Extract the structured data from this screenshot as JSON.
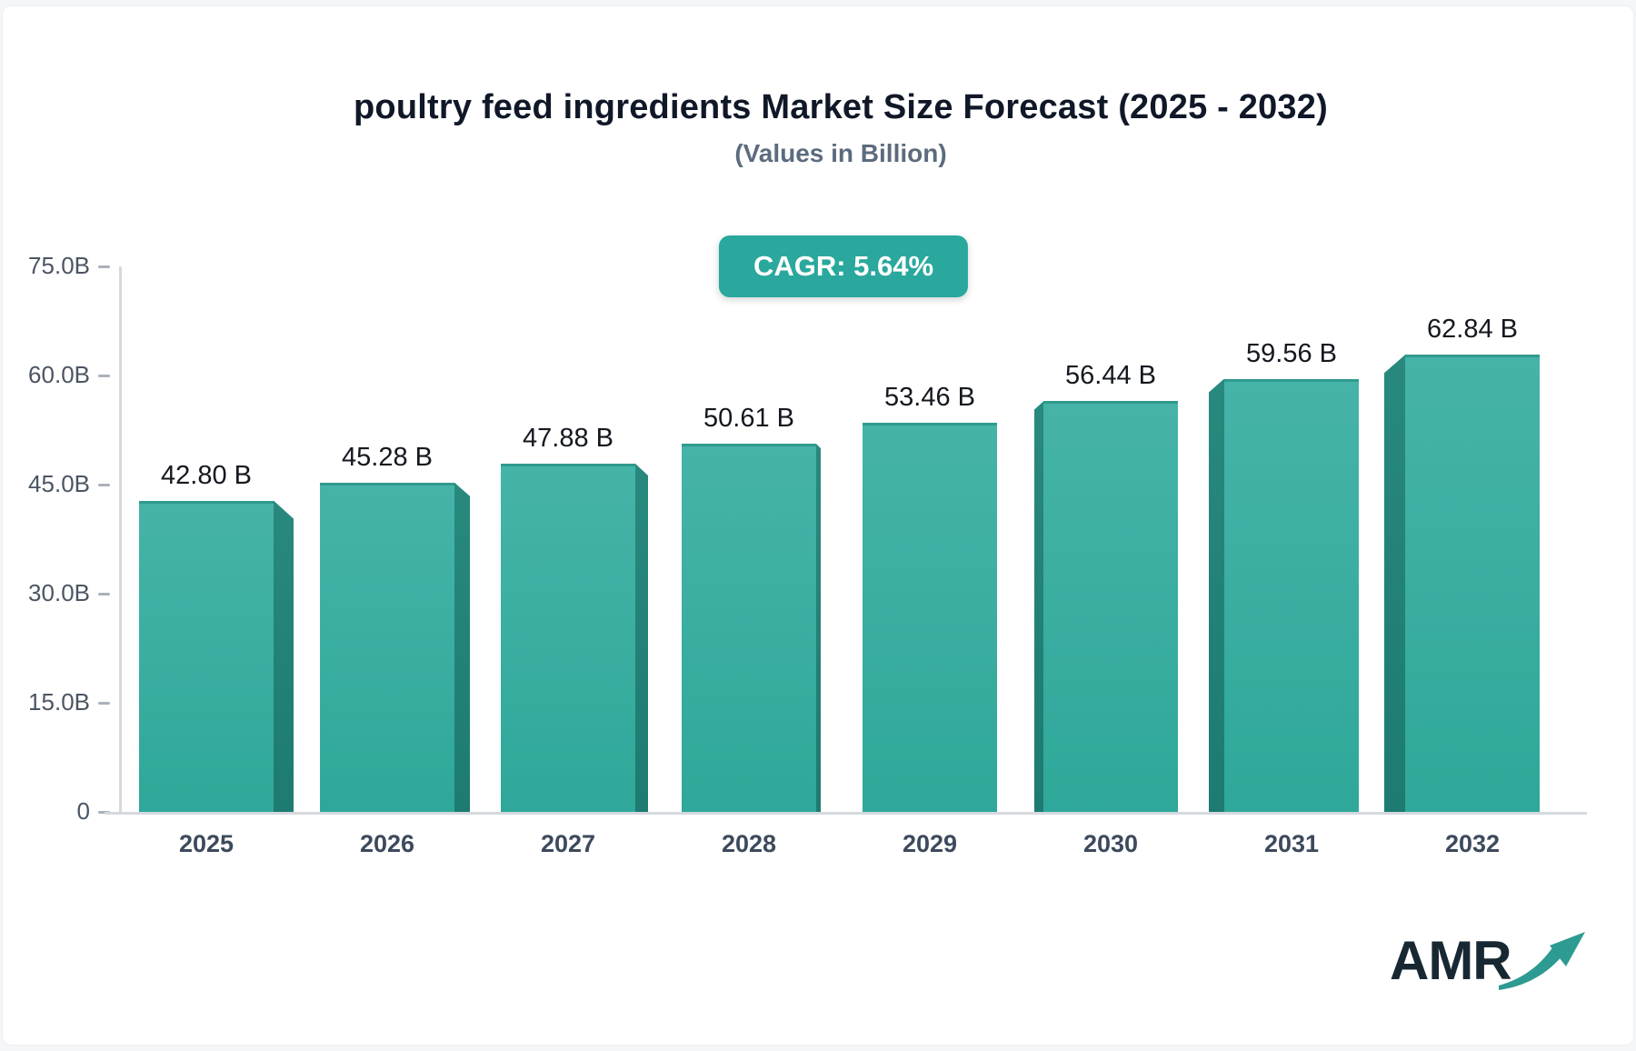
{
  "page": {
    "logo_text": "AMR"
  },
  "chart_data": {
    "type": "bar",
    "title": "poultry feed ingredients Market Size Forecast (2025 - 2032)",
    "subtitle": "(Values in Billion)",
    "cagr_label": "CAGR: 5.64%",
    "categories": [
      "2025",
      "2026",
      "2027",
      "2028",
      "2029",
      "2030",
      "2031",
      "2032"
    ],
    "values": [
      42.8,
      45.28,
      47.88,
      50.61,
      53.46,
      56.44,
      59.56,
      62.84
    ],
    "value_labels": [
      "42.80 B",
      "45.28 B",
      "47.88 B",
      "50.61 B",
      "53.46 B",
      "56.44 B",
      "59.56 B",
      "62.84 B"
    ],
    "xlabel": "",
    "ylabel": "",
    "ylim": [
      0,
      75
    ],
    "grid": false,
    "legend": false,
    "yticks": [
      {
        "value": 0,
        "label": "0"
      },
      {
        "value": 15,
        "label": "15.0B"
      },
      {
        "value": 30,
        "label": "30.0B"
      },
      {
        "value": 45,
        "label": "45.0B"
      },
      {
        "value": 60,
        "label": "60.0B"
      },
      {
        "value": 75,
        "label": "75.0B"
      }
    ],
    "colors": {
      "bar_top": "#46b3a8",
      "bar_bottom": "#2ea89a",
      "bar_top_edge": "#2f9a8e",
      "side_top": "#28897e",
      "side_bottom": "#1d7b71",
      "badge_bg": "#2aa89d",
      "badge_text": "#ffffff",
      "axis": "#d5d9df",
      "logo_arrow": "#2d9b91"
    }
  }
}
